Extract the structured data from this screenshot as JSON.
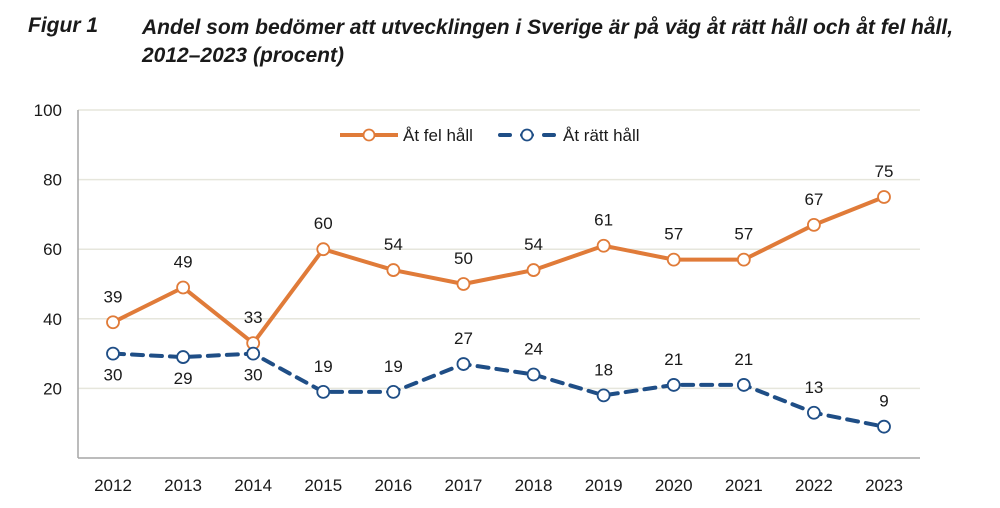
{
  "figure": {
    "label": "Figur 1",
    "title": "Andel som bedömer att utvecklingen i Sverige är på väg åt rätt håll och åt fel håll, 2012–2023 (procent)"
  },
  "chart_data": {
    "type": "line",
    "title": "Andel som bedömer att utvecklingen i Sverige är på väg åt rätt håll och åt fel håll, 2012–2023 (procent)",
    "xlabel": "",
    "ylabel": "",
    "x": [
      "2012",
      "2013",
      "2014",
      "2015",
      "2016",
      "2017",
      "2018",
      "2019",
      "2020",
      "2021",
      "2022",
      "2023"
    ],
    "ylim": [
      0,
      100
    ],
    "yticks": [
      20,
      40,
      60,
      80,
      100
    ],
    "grid": true,
    "legend_position": "top-center",
    "series": [
      {
        "name": "Åt fel håll",
        "color": "#E07B39",
        "style": "solid",
        "marker": "open-circle",
        "values": [
          39,
          49,
          33,
          60,
          54,
          50,
          54,
          61,
          57,
          57,
          67,
          75
        ],
        "label_position": "above"
      },
      {
        "name": "Åt rätt håll",
        "color": "#1F4E86",
        "style": "dashed",
        "marker": "open-circle",
        "values": [
          30,
          29,
          30,
          19,
          19,
          27,
          24,
          18,
          21,
          21,
          13,
          9
        ],
        "label_position": [
          "below",
          "below",
          "below",
          "above",
          "above",
          "above",
          "above",
          "above",
          "above",
          "above",
          "above",
          "above"
        ]
      }
    ]
  }
}
